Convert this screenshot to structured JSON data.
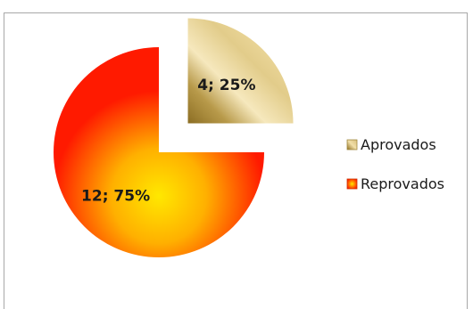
{
  "chart_data": {
    "type": "pie",
    "exploded": true,
    "categories": [
      "Aprovados",
      "Reprovados"
    ],
    "values": [
      4,
      12
    ],
    "percents": [
      "25%",
      "75%"
    ],
    "data_labels": [
      "4; 25%",
      "12; 75%"
    ],
    "legend": {
      "position": "right",
      "entries": [
        "Aprovados",
        "Reprovados"
      ]
    },
    "colors": {
      "Aprovados": {
        "light": "#f1dfa8",
        "mid": "#d8bf7a",
        "dark": "#8f6f1e"
      },
      "Reprovados": {
        "center": "#ffe800",
        "mid": "#ff9a00",
        "edge": "#ff1500"
      }
    }
  }
}
